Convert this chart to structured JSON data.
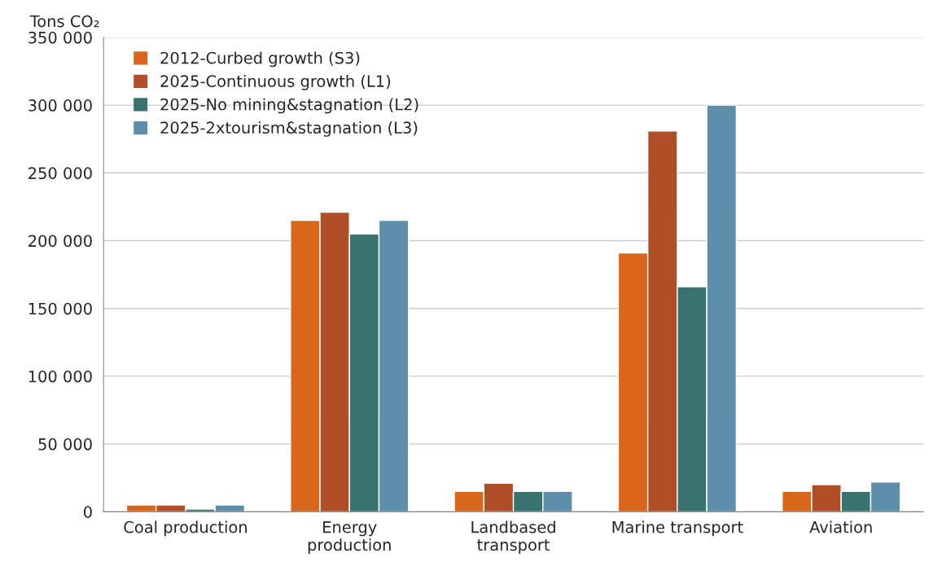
{
  "chart_data": {
    "type": "bar",
    "ylabel": "Tons CO₂",
    "categories": [
      "Coal production",
      "Energy\nproduction",
      "Landbased\ntransport",
      "Marine transport",
      "Aviation"
    ],
    "series": [
      {
        "name": "2012-Curbed growth (S3)",
        "color": "#d9661a",
        "values": [
          5000,
          215000,
          15000,
          191000,
          15000
        ]
      },
      {
        "name": "2025-Continuous growth (L1)",
        "color": "#b04e27",
        "values": [
          5000,
          221000,
          21000,
          281000,
          20000
        ]
      },
      {
        "name": "2025-No mining&stagnation (L2)",
        "color": "#38736f",
        "values": [
          2000,
          205000,
          15000,
          166000,
          15000
        ]
      },
      {
        "name": "2025-2xtourism&stagnation (L3)",
        "color": "#5d8fab",
        "values": [
          5000,
          215000,
          15000,
          300000,
          22000
        ]
      }
    ],
    "ylim": [
      0,
      350000
    ],
    "yticks": [
      0,
      {
        "value": 50000,
        "label": "50 000"
      },
      {
        "value": 100000,
        "label": "100 000"
      },
      {
        "value": 150000,
        "label": "150 000"
      },
      {
        "value": 200000,
        "label": "200 000"
      },
      {
        "value": 250000,
        "label": "250 000"
      },
      {
        "value": 300000,
        "label": "300 000"
      },
      {
        "value": 350000,
        "label": "350 000"
      }
    ],
    "grid": "y",
    "legend": "top left"
  }
}
